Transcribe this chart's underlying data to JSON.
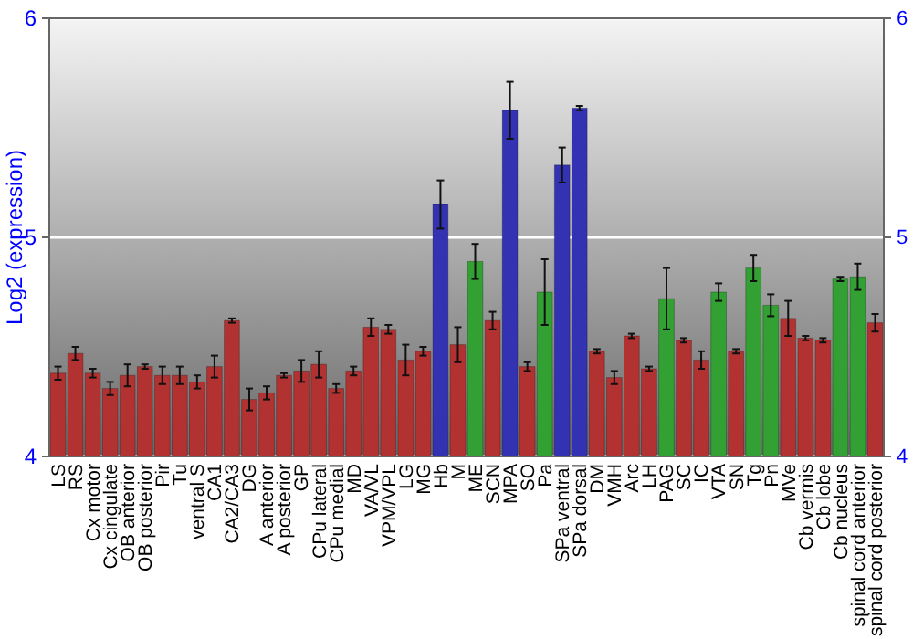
{
  "chart_data": {
    "type": "bar",
    "ylabel": "Log2 (expression)",
    "categories": [
      "LS",
      "RS",
      "Cx motor",
      "Cx cingulate",
      "OB anterior",
      "OB posterior",
      "Pir",
      "Tu",
      "ventral S",
      "CA1",
      "CA2/CA3",
      "DG",
      "A anterior",
      "A posterior",
      "GP",
      "CPu lateral",
      "CPu medial",
      "MD",
      "VA/VL",
      "VPM/VPL",
      "LG",
      "MG",
      "Hb",
      "M",
      "ME",
      "SCN",
      "MPA",
      "SO",
      "Pa",
      "SPa ventral",
      "SPa dorsal",
      "DM",
      "VMH",
      "Arc",
      "LH",
      "PAG",
      "SC",
      "IC",
      "VTA",
      "SN",
      "Tg",
      "Pn",
      "MVe",
      "Cb vermis",
      "Cb lobe",
      "Cb nucleus",
      "spinal cord anterior",
      "spinal cord posterior"
    ],
    "values": [
      4.38,
      4.47,
      4.38,
      4.31,
      4.37,
      4.41,
      4.37,
      4.37,
      4.34,
      4.41,
      4.62,
      4.26,
      4.29,
      4.37,
      4.39,
      4.42,
      4.31,
      4.39,
      4.59,
      4.58,
      4.44,
      4.48,
      5.15,
      4.51,
      4.89,
      4.62,
      5.58,
      4.41,
      4.75,
      5.33,
      5.59,
      4.48,
      4.36,
      4.55,
      4.4,
      4.72,
      4.53,
      4.44,
      4.75,
      4.48,
      4.86,
      4.69,
      4.63,
      4.54,
      4.53,
      4.81,
      4.82,
      4.61
    ],
    "errors": [
      0.03,
      0.03,
      0.02,
      0.03,
      0.05,
      0.01,
      0.04,
      0.04,
      0.03,
      0.05,
      0.01,
      0.05,
      0.03,
      0.01,
      0.05,
      0.06,
      0.02,
      0.02,
      0.04,
      0.02,
      0.07,
      0.02,
      0.11,
      0.08,
      0.08,
      0.04,
      0.13,
      0.02,
      0.15,
      0.08,
      0.01,
      0.01,
      0.03,
      0.01,
      0.01,
      0.14,
      0.01,
      0.04,
      0.04,
      0.01,
      0.06,
      0.05,
      0.08,
      0.01,
      0.01,
      0.01,
      0.06,
      0.04
    ],
    "colors": [
      "#b23232",
      "#b23232",
      "#b23232",
      "#b23232",
      "#b23232",
      "#b23232",
      "#b23232",
      "#b23232",
      "#b23232",
      "#b23232",
      "#b23232",
      "#b23232",
      "#b23232",
      "#b23232",
      "#b23232",
      "#b23232",
      "#b23232",
      "#b23232",
      "#b23232",
      "#b23232",
      "#b23232",
      "#b23232",
      "#3232b2",
      "#b23232",
      "#32a032",
      "#b23232",
      "#3232b2",
      "#b23232",
      "#32a032",
      "#3232b2",
      "#3232b2",
      "#b23232",
      "#b23232",
      "#b23232",
      "#b23232",
      "#32a032",
      "#b23232",
      "#b23232",
      "#32a032",
      "#b23232",
      "#32a032",
      "#32a032",
      "#b23232",
      "#b23232",
      "#b23232",
      "#32a032",
      "#32a032",
      "#b23232"
    ],
    "ylim": [
      4,
      6
    ],
    "yticks": [
      4,
      5,
      6
    ],
    "y2lim": [
      4,
      6
    ],
    "y2ticks": [
      4,
      5,
      6
    ],
    "grid": "y"
  }
}
